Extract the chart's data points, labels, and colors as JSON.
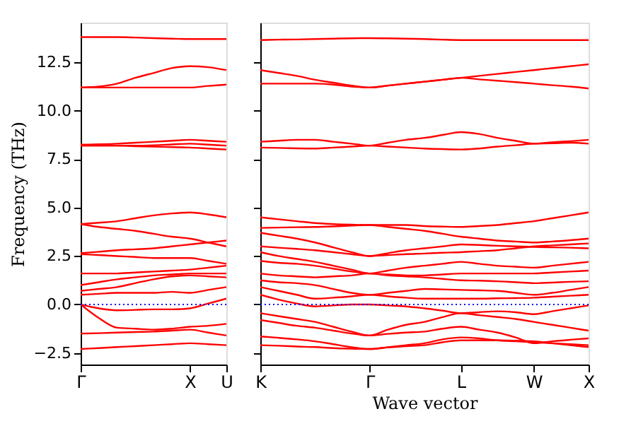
{
  "chart_data": [
    {
      "type": "line",
      "ylabel": "Frequency (THz)",
      "ylim": [
        -3.1,
        14.55
      ],
      "categories": [
        "Γ",
        null,
        null,
        null,
        null,
        null,
        "X",
        null,
        "U"
      ],
      "yticks": [
        {
          "value": -2.5,
          "label": "−2.5"
        },
        {
          "value": 0,
          "label": "0.0"
        },
        {
          "value": 2.5,
          "label": "2.5"
        },
        {
          "value": 5,
          "label": "5.0"
        },
        {
          "value": 7.5,
          "label": "7.5"
        },
        {
          "value": 10,
          "label": "10.0"
        },
        {
          "value": 12.5,
          "label": "12.5"
        }
      ],
      "grid": false,
      "legend": false,
      "marker": "none",
      "line_style": "solid",
      "ref_lines": [
        {
          "axis": "y",
          "value": 0,
          "color": "#0000ff",
          "line_style": "dotted"
        }
      ],
      "series": [
        {
          "color": "#ff0000",
          "values": [
            13.8,
            13.8,
            13.8,
            13.78,
            13.75,
            13.72,
            13.7,
            13.7,
            13.7
          ]
        },
        {
          "color": "#ff0000",
          "values": [
            11.2,
            11.25,
            11.4,
            11.7,
            11.95,
            12.2,
            12.3,
            12.25,
            12.1
          ]
        },
        {
          "color": "#ff0000",
          "values": [
            11.2,
            11.2,
            11.2,
            11.2,
            11.2,
            11.2,
            11.2,
            11.28,
            11.35
          ]
        },
        {
          "color": "#ff0000",
          "values": [
            8.25,
            8.27,
            8.3,
            8.35,
            8.4,
            8.45,
            8.5,
            8.45,
            8.4
          ]
        },
        {
          "color": "#ff0000",
          "values": [
            8.2,
            8.2,
            8.2,
            8.2,
            8.22,
            8.26,
            8.3,
            8.25,
            8.2
          ]
        },
        {
          "color": "#ff0000",
          "values": [
            8.2,
            8.2,
            8.2,
            8.17,
            8.15,
            8.12,
            8.1,
            8.05,
            8.0
          ]
        },
        {
          "color": "#ff0000",
          "values": [
            4.15,
            4.22,
            4.3,
            4.45,
            4.6,
            4.7,
            4.75,
            4.65,
            4.5
          ]
        },
        {
          "color": "#ff0000",
          "values": [
            4.15,
            4.0,
            3.9,
            3.8,
            3.65,
            3.5,
            3.4,
            3.2,
            3.0
          ]
        },
        {
          "color": "#ff0000",
          "values": [
            2.65,
            2.72,
            2.8,
            2.85,
            2.9,
            3.0,
            3.1,
            3.2,
            3.3
          ]
        },
        {
          "color": "#ff0000",
          "values": [
            2.6,
            2.55,
            2.5,
            2.45,
            2.4,
            2.4,
            2.4,
            2.25,
            2.1
          ]
        },
        {
          "color": "#ff0000",
          "values": [
            1.6,
            1.6,
            1.6,
            1.65,
            1.7,
            1.75,
            1.8,
            1.9,
            2.0
          ]
        },
        {
          "color": "#ff0000",
          "values": [
            1.0,
            1.15,
            1.3,
            1.4,
            1.5,
            1.55,
            1.6,
            1.6,
            1.6
          ]
        },
        {
          "color": "#ff0000",
          "values": [
            0.7,
            0.8,
            0.9,
            1.1,
            1.3,
            1.45,
            1.5,
            1.45,
            1.4
          ]
        },
        {
          "color": "#ff0000",
          "values": [
            0.5,
            0.55,
            0.6,
            0.6,
            0.6,
            0.65,
            0.6,
            0.75,
            0.9
          ]
        },
        {
          "color": "#ff0000",
          "values": [
            0.0,
            -0.2,
            -0.3,
            -0.28,
            -0.25,
            -0.25,
            -0.2,
            0.05,
            0.3
          ]
        },
        {
          "color": "#ff0000",
          "values": [
            0.0,
            -0.7,
            -1.2,
            -1.25,
            -1.3,
            -1.25,
            -1.15,
            -1.1,
            -1.0
          ]
        },
        {
          "color": "#ff0000",
          "values": [
            -1.5,
            -1.48,
            -1.45,
            -1.42,
            -1.4,
            -1.35,
            -1.3,
            -1.45,
            -1.6
          ]
        },
        {
          "color": "#ff0000",
          "values": [
            -2.3,
            -2.25,
            -2.2,
            -2.15,
            -2.1,
            -2.05,
            -2.0,
            -2.05,
            -2.1
          ]
        }
      ]
    },
    {
      "type": "line",
      "xlabel": "Wave vector",
      "ylim": [
        -3.1,
        14.55
      ],
      "tick_labels": "x",
      "categories": [
        "K",
        null,
        null,
        null,
        null,
        null,
        "Γ",
        null,
        null,
        null,
        null,
        "L",
        null,
        null,
        null,
        "W",
        null,
        null,
        "X"
      ],
      "yticks": [
        -2.5,
        0,
        2.5,
        5,
        7.5,
        10,
        12.5
      ],
      "grid": false,
      "legend": false,
      "marker": "none",
      "line_style": "solid",
      "ref_lines": [
        {
          "axis": "y",
          "value": 0,
          "color": "#0000ff",
          "line_style": "dotted"
        }
      ],
      "series": [
        {
          "color": "#ff0000",
          "values": [
            13.65,
            13.67,
            13.68,
            13.7,
            13.72,
            13.74,
            13.75,
            13.74,
            13.72,
            13.7,
            13.67,
            13.65,
            13.65,
            13.65,
            13.65,
            13.65,
            13.65,
            13.65,
            13.65
          ]
        },
        {
          "color": "#ff0000",
          "values": [
            12.1,
            11.95,
            11.8,
            11.6,
            11.45,
            11.3,
            11.2,
            11.3,
            11.4,
            11.5,
            11.6,
            11.7,
            11.8,
            11.9,
            12.0,
            12.1,
            12.2,
            12.3,
            12.4
          ]
        },
        {
          "color": "#ff0000",
          "values": [
            11.4,
            11.4,
            11.4,
            11.4,
            11.35,
            11.25,
            11.2,
            11.3,
            11.4,
            11.5,
            11.6,
            11.7,
            11.62,
            11.55,
            11.48,
            11.4,
            11.32,
            11.25,
            11.15
          ]
        },
        {
          "color": "#ff0000",
          "values": [
            8.4,
            8.45,
            8.5,
            8.5,
            8.4,
            8.3,
            8.2,
            8.35,
            8.5,
            8.6,
            8.75,
            8.9,
            8.8,
            8.6,
            8.45,
            8.3,
            8.37,
            8.43,
            8.5
          ]
        },
        {
          "color": "#ff0000",
          "values": [
            8.1,
            8.08,
            8.06,
            8.05,
            8.1,
            8.15,
            8.2,
            8.15,
            8.1,
            8.05,
            8.02,
            8.0,
            8.05,
            8.15,
            8.22,
            8.3,
            8.32,
            8.35,
            8.3
          ]
        },
        {
          "color": "#ff0000",
          "values": [
            4.5,
            4.4,
            4.3,
            4.2,
            4.15,
            4.12,
            4.1,
            4.1,
            4.1,
            4.05,
            4.02,
            4.0,
            4.05,
            4.1,
            4.2,
            4.3,
            4.45,
            4.6,
            4.75
          ]
        },
        {
          "color": "#ff0000",
          "values": [
            3.95,
            3.97,
            3.99,
            4.0,
            4.03,
            4.07,
            4.1,
            4.0,
            3.9,
            3.8,
            3.65,
            3.5,
            3.4,
            3.3,
            3.25,
            3.2,
            3.25,
            3.32,
            3.4
          ]
        },
        {
          "color": "#ff0000",
          "values": [
            3.7,
            3.55,
            3.4,
            3.2,
            2.95,
            2.7,
            2.5,
            2.65,
            2.8,
            2.9,
            3.0,
            3.1,
            3.07,
            3.03,
            3.0,
            2.97,
            2.95,
            2.93,
            2.9
          ]
        },
        {
          "color": "#ff0000",
          "values": [
            3.0,
            2.93,
            2.87,
            2.8,
            2.7,
            2.6,
            2.5,
            2.55,
            2.6,
            2.63,
            2.67,
            2.7,
            2.75,
            2.8,
            2.9,
            3.0,
            3.05,
            3.1,
            3.15
          ]
        },
        {
          "color": "#ff0000",
          "values": [
            2.7,
            2.5,
            2.35,
            2.2,
            2.0,
            1.8,
            1.6,
            1.75,
            1.9,
            2.0,
            2.1,
            2.2,
            2.1,
            2.0,
            1.95,
            1.9,
            2.0,
            2.1,
            2.2
          ]
        },
        {
          "color": "#ff0000",
          "values": [
            2.25,
            2.15,
            2.1,
            2.0,
            1.85,
            1.7,
            1.6,
            1.55,
            1.5,
            1.5,
            1.55,
            1.6,
            1.6,
            1.6,
            1.6,
            1.6,
            1.65,
            1.7,
            1.75
          ]
        },
        {
          "color": "#ff0000",
          "values": [
            1.6,
            1.5,
            1.45,
            1.4,
            1.45,
            1.5,
            1.6,
            1.5,
            1.45,
            1.4,
            1.32,
            1.25,
            1.23,
            1.2,
            1.15,
            1.1,
            1.13,
            1.17,
            1.2
          ]
        },
        {
          "color": "#ff0000",
          "values": [
            1.25,
            1.15,
            1.1,
            1.0,
            0.8,
            0.6,
            0.5,
            0.6,
            0.7,
            0.8,
            0.78,
            0.75,
            0.73,
            0.7,
            0.6,
            0.5,
            0.6,
            0.75,
            0.9
          ]
        },
        {
          "color": "#ff0000",
          "values": [
            0.9,
            0.7,
            0.5,
            0.3,
            0.35,
            0.42,
            0.5,
            0.42,
            0.35,
            0.3,
            0.3,
            0.3,
            0.3,
            0.32,
            0.33,
            0.35,
            0.4,
            0.45,
            0.5
          ]
        },
        {
          "color": "#ff0000",
          "values": [
            0.5,
            0.25,
            0.05,
            -0.1,
            -0.05,
            0.0,
            0.0,
            -0.05,
            -0.1,
            -0.2,
            -0.32,
            -0.45,
            -0.4,
            -0.35,
            -0.4,
            -0.5,
            -0.35,
            -0.2,
            -0.05
          ]
        },
        {
          "color": "#ff0000",
          "values": [
            -0.45,
            -0.6,
            -0.75,
            -0.9,
            -1.15,
            -1.4,
            -1.6,
            -1.3,
            -1.05,
            -0.9,
            -0.65,
            -0.45,
            -0.55,
            -0.65,
            -0.75,
            -0.9,
            -1.05,
            -1.2,
            -1.35
          ]
        },
        {
          "color": "#ff0000",
          "values": [
            -0.8,
            -0.95,
            -1.1,
            -1.2,
            -1.35,
            -1.5,
            -1.6,
            -1.52,
            -1.45,
            -1.4,
            -1.25,
            -1.15,
            -1.3,
            -1.45,
            -1.7,
            -2.0,
            -1.9,
            -1.82,
            -1.75
          ]
        },
        {
          "color": "#ff0000",
          "values": [
            -1.65,
            -1.72,
            -1.8,
            -1.9,
            -2.05,
            -2.2,
            -2.3,
            -2.2,
            -2.1,
            -2.0,
            -1.8,
            -1.7,
            -1.75,
            -1.85,
            -1.9,
            -1.95,
            -2.0,
            -2.05,
            -2.1
          ]
        },
        {
          "color": "#ff0000",
          "values": [
            -2.1,
            -2.13,
            -2.17,
            -2.2,
            -2.25,
            -2.28,
            -2.3,
            -2.22,
            -2.15,
            -2.1,
            -1.95,
            -1.85,
            -1.85,
            -1.85,
            -1.87,
            -1.9,
            -2.0,
            -2.1,
            -2.2
          ]
        }
      ]
    }
  ]
}
